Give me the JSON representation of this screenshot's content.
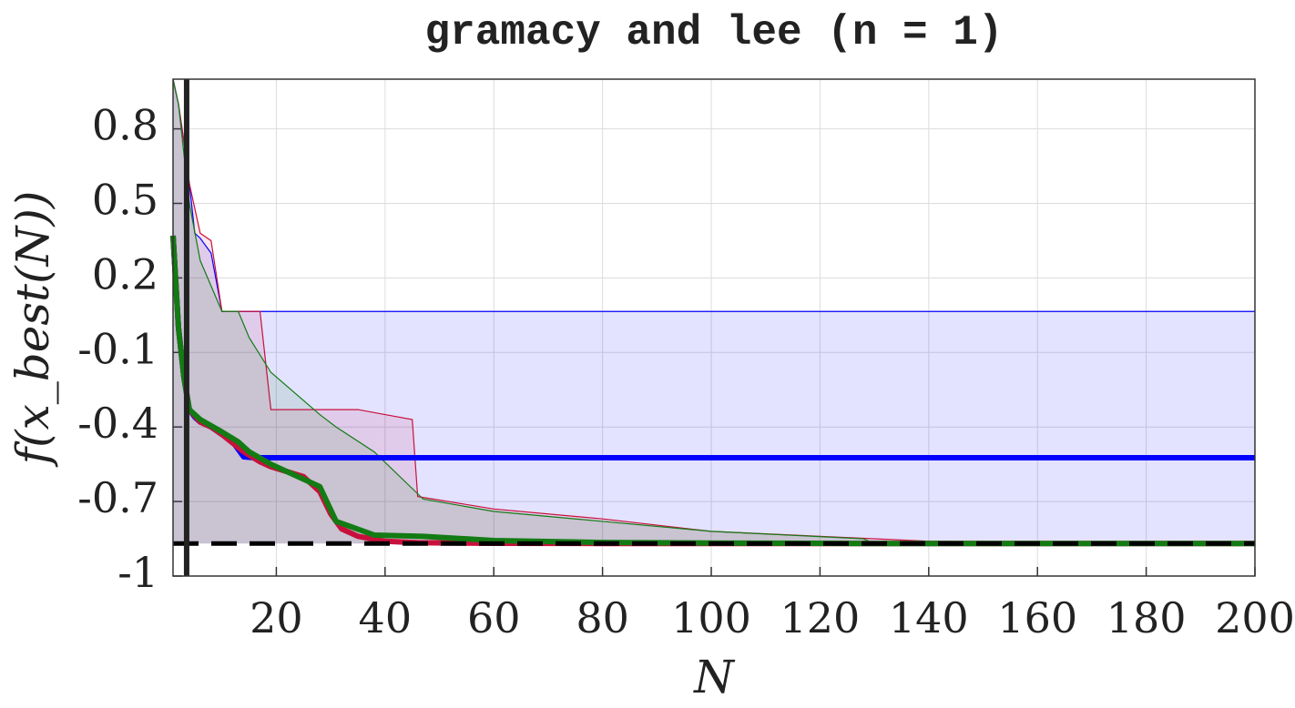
{
  "chart_data": {
    "type": "line",
    "title": "gramacy and lee (n = 1)",
    "xlabel": "N",
    "ylabel": "f(x_best(N))",
    "xlim": [
      1,
      200
    ],
    "ylim": [
      -1,
      1
    ],
    "xticks": [
      20,
      40,
      60,
      80,
      100,
      120,
      140,
      160,
      180,
      200
    ],
    "yticks": [
      0.8,
      0.5,
      0.2,
      -0.1,
      -0.4,
      -0.7,
      -1
    ],
    "grid": true,
    "vline_x": 3.5,
    "hline_y": -0.869,
    "series": [
      {
        "color": "#0000ff",
        "x": [
          1,
          2,
          3,
          4,
          5,
          6,
          8,
          10,
          12,
          14,
          16,
          200
        ],
        "values": [
          0.37,
          0.0,
          -0.2,
          -0.33,
          -0.36,
          -0.38,
          -0.4,
          -0.43,
          -0.46,
          -0.52,
          -0.524,
          -0.524
        ],
        "upper": [
          1.0,
          0.9,
          0.75,
          0.58,
          0.38,
          0.36,
          0.3,
          0.065,
          0.065,
          0.065,
          0.065,
          0.065
        ],
        "lower": [
          -0.869,
          -0.869,
          -0.869,
          -0.869,
          -0.869,
          -0.869,
          -0.869,
          -0.869,
          -0.869,
          -0.869,
          -0.869,
          -0.869
        ]
      },
      {
        "color": "#c8103c",
        "x": [
          1,
          2,
          3,
          4,
          6,
          8,
          10,
          14,
          17,
          19,
          25,
          28,
          30,
          32,
          35,
          40,
          45,
          46,
          60,
          80,
          100,
          140,
          200
        ],
        "values": [
          0.37,
          0.0,
          -0.2,
          -0.33,
          -0.38,
          -0.4,
          -0.43,
          -0.5,
          -0.54,
          -0.56,
          -0.6,
          -0.66,
          -0.75,
          -0.81,
          -0.84,
          -0.86,
          -0.865,
          -0.866,
          -0.868,
          -0.869,
          -0.869,
          -0.869,
          -0.869
        ],
        "upper": [
          1.0,
          0.9,
          0.75,
          0.58,
          0.38,
          0.35,
          0.065,
          0.065,
          0.065,
          -0.33,
          -0.33,
          -0.33,
          -0.33,
          -0.33,
          -0.33,
          -0.35,
          -0.37,
          -0.68,
          -0.73,
          -0.77,
          -0.82,
          -0.86,
          -0.869
        ],
        "lower": [
          -0.869,
          -0.869,
          -0.869,
          -0.869,
          -0.869,
          -0.869,
          -0.869,
          -0.869,
          -0.869,
          -0.869,
          -0.869,
          -0.869,
          -0.869,
          -0.869,
          -0.869,
          -0.869,
          -0.869,
          -0.869,
          -0.869,
          -0.869,
          -0.869,
          -0.869,
          -0.869
        ]
      },
      {
        "color": "#137b13",
        "x": [
          1,
          2,
          3,
          4,
          6,
          10,
          13,
          15,
          19,
          28,
          31,
          38,
          47,
          60,
          80,
          100,
          128,
          130,
          200
        ],
        "values": [
          0.37,
          0.0,
          -0.2,
          -0.33,
          -0.37,
          -0.42,
          -0.46,
          -0.5,
          -0.55,
          -0.64,
          -0.78,
          -0.835,
          -0.84,
          -0.857,
          -0.865,
          -0.867,
          -0.869,
          -0.869,
          -0.869
        ],
        "upper": [
          1.0,
          0.9,
          0.7,
          0.5,
          0.27,
          0.065,
          0.065,
          -0.04,
          -0.18,
          -0.35,
          -0.4,
          -0.5,
          -0.69,
          -0.74,
          -0.78,
          -0.82,
          -0.85,
          -0.869,
          -0.869
        ],
        "lower": [
          -0.869,
          -0.869,
          -0.869,
          -0.869,
          -0.869,
          -0.869,
          -0.869,
          -0.869,
          -0.869,
          -0.869,
          -0.869,
          -0.869,
          -0.869,
          -0.869,
          -0.869,
          -0.869,
          -0.869,
          -0.869,
          -0.869
        ]
      }
    ]
  }
}
